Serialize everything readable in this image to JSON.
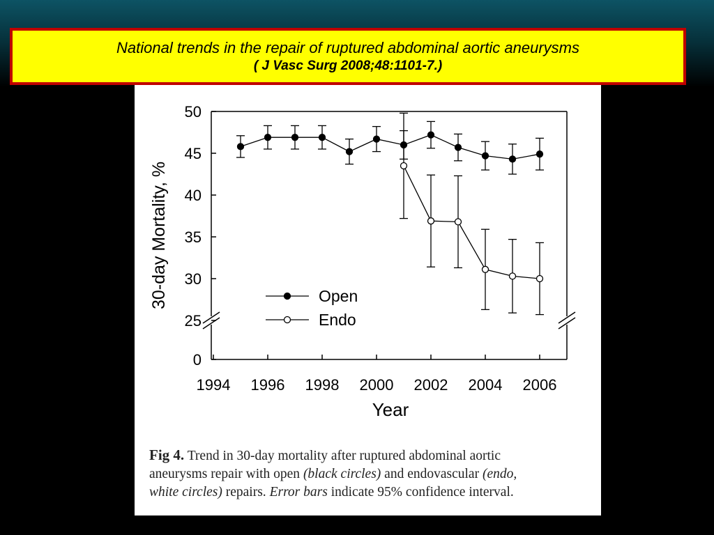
{
  "header": {
    "title": "National trends in the repair of ruptured abdominal aortic aneurysms",
    "citation": "( J Vasc Surg 2008;48:1101-7.)"
  },
  "chart_data": {
    "type": "line",
    "x_label": "Year",
    "y_label": "30-day Mortality, %",
    "x": [
      1995,
      1996,
      1997,
      1998,
      1999,
      2000,
      2001,
      2002,
      2003,
      2004,
      2005,
      2006
    ],
    "series": [
      {
        "name": "Open",
        "color": "#000000",
        "marker_fill": "#000000",
        "values": [
          45.8,
          46.9,
          46.9,
          46.9,
          45.2,
          46.7,
          46.0,
          47.2,
          45.7,
          44.7,
          44.3,
          44.9
        ],
        "errors": [
          1.3,
          1.4,
          1.4,
          1.4,
          1.5,
          1.5,
          1.7,
          1.6,
          1.6,
          1.7,
          1.8,
          1.9
        ]
      },
      {
        "name": "Endo",
        "color": "#000000",
        "marker_fill": "#ffffff",
        "values": [
          null,
          null,
          null,
          null,
          null,
          null,
          43.5,
          36.9,
          36.8,
          31.1,
          30.3,
          30.0
        ],
        "errors": [
          null,
          null,
          null,
          null,
          null,
          null,
          6.3,
          5.5,
          5.5,
          4.8,
          4.4,
          4.3
        ]
      }
    ],
    "xlim": [
      1994,
      2007
    ],
    "xticks": [
      1994,
      1996,
      1998,
      2000,
      2002,
      2004,
      2006
    ],
    "ylim": [
      0,
      50
    ],
    "yticks": [
      0,
      25,
      30,
      35,
      40,
      45,
      50
    ],
    "axis_break": true,
    "legend": "lower left",
    "grid": false
  },
  "caption": [
    [
      "Fig 4.",
      " Trend in 30-day mortality after ruptured abdominal aortic"
    ],
    [
      "aneurysms repair with open ",
      "(black circles)",
      " and endovascular ",
      "(endo,"
    ],
    [
      "white circles)",
      " repairs. ",
      "Error bars",
      " indicate 95% confidence interval."
    ]
  ]
}
